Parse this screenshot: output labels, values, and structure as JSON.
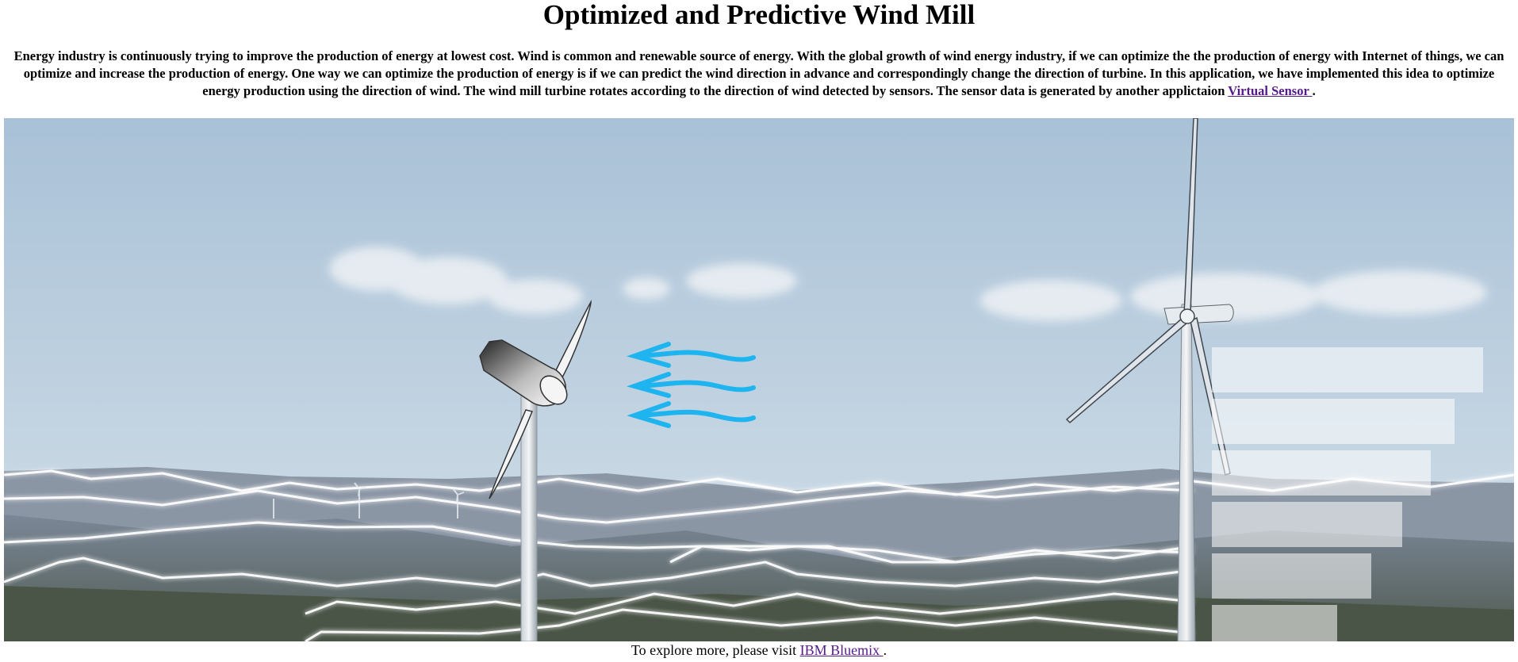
{
  "page": {
    "title": "Optimized and Predictive Wind Mill",
    "intro_text": "Energy industry is continuously trying to improve the production of energy at lowest cost. Wind is common and renewable source of energy. With the global growth of wind energy industry, if we can optimize the the production of energy with Internet of things, we can optimize and increase the production of energy. One way we can optimize the production of energy is if we can predict the wind direction in advance and correspondingly change the direction of turbine. In this application, we have implemented this idea to optimize energy production using the direction of wind. The wind mill turbine rotates according to the direction of wind detected by sensors. The sensor data is generated by another applictaion ",
    "intro_link": "Virtual Sensor ",
    "intro_end": ".",
    "footer_text": "To explore more, please visit ",
    "footer_link": "IBM Bluemix ",
    "footer_end": "."
  },
  "scene": {
    "sky_top": "#aec4d9",
    "sky_bottom": "#cfdce6",
    "hill_color": "#6d7b8c",
    "wind_arrow_color": "#1eb4f0",
    "glow_line_color": "#ffffff",
    "wind_direction": "left",
    "level_bar_count": 6
  }
}
